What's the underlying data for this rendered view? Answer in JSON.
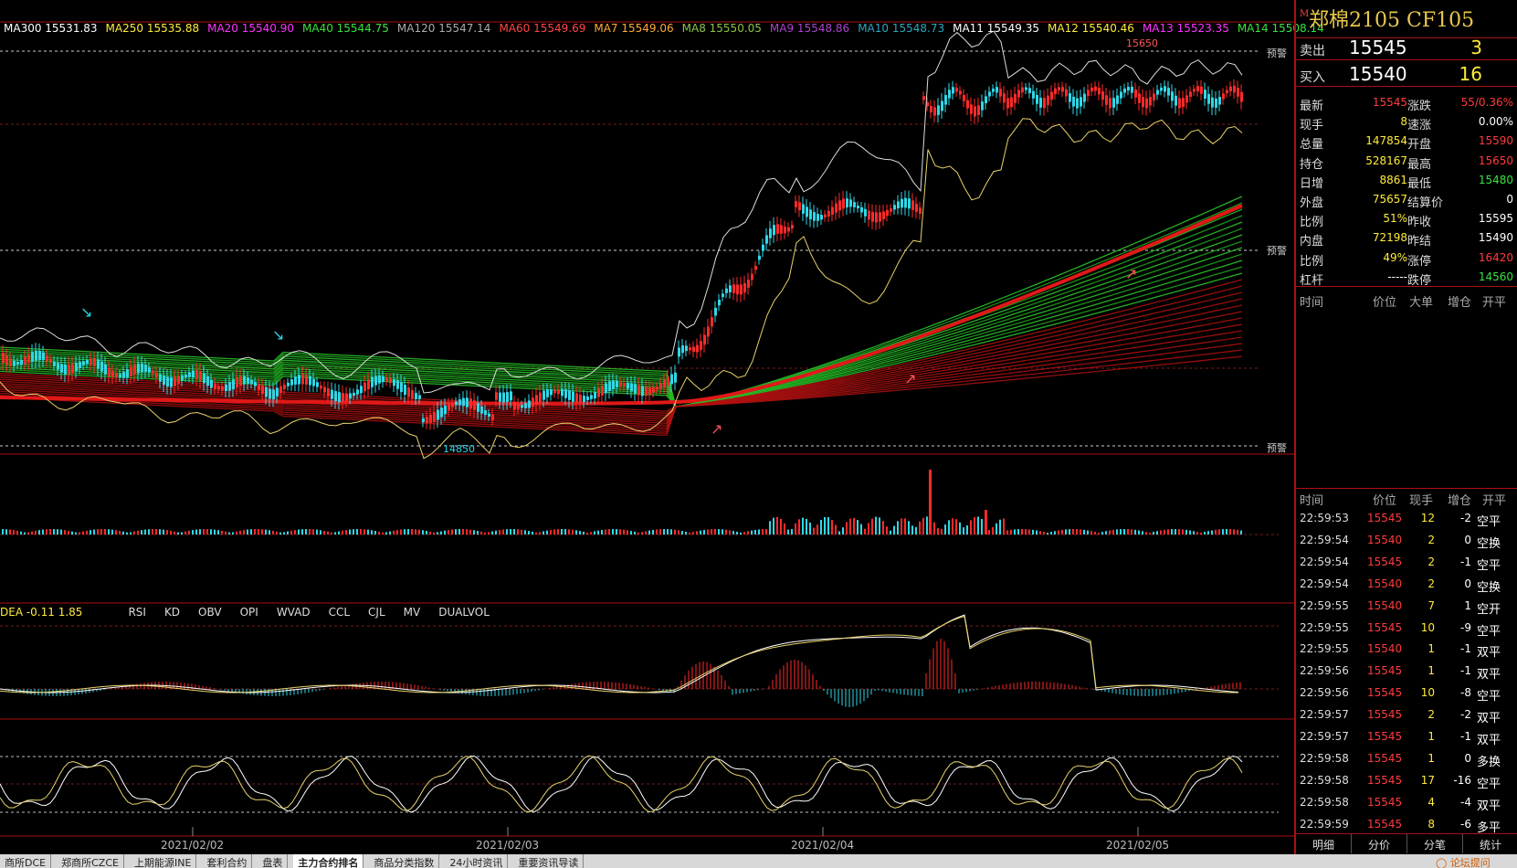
{
  "ma_bar": [
    {
      "label": "MA300 15531.83",
      "color": "#ffffff"
    },
    {
      "label": "MA250 15535.88",
      "color": "#ffeb3b"
    },
    {
      "label": "MA20 15540.90",
      "color": "#ff33ff"
    },
    {
      "label": "MA40 15544.75",
      "color": "#39e23f"
    },
    {
      "label": "MA120 15547.14",
      "color": "#aaaaaa"
    },
    {
      "label": "MA60 15549.69",
      "color": "#ff4444"
    },
    {
      "label": "MA7 15549.06",
      "color": "#ffaa33"
    },
    {
      "label": "MA8 15550.05",
      "color": "#8bc34a"
    },
    {
      "label": "MA9 15548.86",
      "color": "#aa44cc"
    },
    {
      "label": "MA10 15548.73",
      "color": "#2aa7c0"
    },
    {
      "label": "MA11 15549.35",
      "color": "#ffffff"
    },
    {
      "label": "MA12 15540.46",
      "color": "#ffeb3b"
    },
    {
      "label": "MA13 15523.35",
      "color": "#ff33ff"
    },
    {
      "label": "MA14 15508.14",
      "color": "#39e23f"
    }
  ],
  "price_labels": {
    "high": "15650",
    "low": "14850",
    "warn": "预警"
  },
  "indicator_bar": {
    "values": "DEA -0.11   1.85",
    "tabs": [
      "RSI",
      "KD",
      "OBV",
      "OPI",
      "WVAD",
      "CCL",
      "CJL",
      "MV",
      "DUALVOL"
    ]
  },
  "dates": [
    "2021/02/02",
    "2021/02/03",
    "2021/02/04",
    "2021/02/05"
  ],
  "contract": {
    "title": "郑棉2105  CF105",
    "market_badge": "M"
  },
  "quote": {
    "sell_label": "卖出",
    "sell_price": "15545",
    "sell_vol": "3",
    "buy_label": "买入",
    "buy_price": "15540",
    "buy_vol": "16"
  },
  "stats": [
    {
      "l1": "最新",
      "v1": "15545",
      "c1": "red",
      "l2": "涨跌",
      "v2": "55/0.36%",
      "c2": "red"
    },
    {
      "l1": "现手",
      "v1": "8",
      "c1": "yellow",
      "l2": "速涨",
      "v2": "0.00%",
      "c2": "white"
    },
    {
      "l1": "总量",
      "v1": "147854",
      "c1": "yellow",
      "l2": "开盘",
      "v2": "15590",
      "c2": "red"
    },
    {
      "l1": "持仓",
      "v1": "528167",
      "c1": "yellow",
      "l2": "最高",
      "v2": "15650",
      "c2": "red"
    },
    {
      "l1": "日增",
      "v1": "8861",
      "c1": "yellow",
      "l2": "最低",
      "v2": "15480",
      "c2": "green"
    },
    {
      "l1": "外盘",
      "v1": "75657",
      "c1": "yellow",
      "l2": "结算价",
      "v2": "0",
      "c2": "white"
    },
    {
      "l1": "比例",
      "v1": "51%",
      "c1": "yellow",
      "l2": "昨收",
      "v2": "15595",
      "c2": "white"
    },
    {
      "l1": "内盘",
      "v1": "72198",
      "c1": "yellow",
      "l2": "昨结",
      "v2": "15490",
      "c2": "white"
    },
    {
      "l1": "比例",
      "v1": "49%",
      "c1": "yellow",
      "l2": "涨停",
      "v2": "16420",
      "c2": "red"
    },
    {
      "l1": "杠杆",
      "v1": "-----",
      "c1": "white",
      "l2": "跌停",
      "v2": "14560",
      "c2": "green"
    }
  ],
  "bigorder_header": [
    "时间",
    "价位",
    "大单",
    "增仓",
    "开平"
  ],
  "trade_header": [
    "时间",
    "价位",
    "现手",
    "增仓",
    "开平"
  ],
  "trades": [
    {
      "time": "22:59:53",
      "price": "15545",
      "vol": "12",
      "oi": "-2",
      "type": "空平",
      "pc": "red"
    },
    {
      "time": "22:59:54",
      "price": "15540",
      "vol": "2",
      "oi": "0",
      "type": "空换",
      "pc": "red"
    },
    {
      "time": "22:59:54",
      "price": "15545",
      "vol": "2",
      "oi": "-1",
      "type": "空平",
      "pc": "red"
    },
    {
      "time": "22:59:54",
      "price": "15540",
      "vol": "2",
      "oi": "0",
      "type": "空换",
      "pc": "red"
    },
    {
      "time": "22:59:55",
      "price": "15540",
      "vol": "7",
      "oi": "1",
      "type": "空开",
      "pc": "red"
    },
    {
      "time": "22:59:55",
      "price": "15545",
      "vol": "10",
      "oi": "-9",
      "type": "空平",
      "pc": "red"
    },
    {
      "time": "22:59:55",
      "price": "15540",
      "vol": "1",
      "oi": "-1",
      "type": "双平",
      "pc": "red"
    },
    {
      "time": "22:59:56",
      "price": "15545",
      "vol": "1",
      "oi": "-1",
      "type": "双平",
      "pc": "red"
    },
    {
      "time": "22:59:56",
      "price": "15545",
      "vol": "10",
      "oi": "-8",
      "type": "空平",
      "pc": "red"
    },
    {
      "time": "22:59:57",
      "price": "15545",
      "vol": "2",
      "oi": "-2",
      "type": "双平",
      "pc": "red"
    },
    {
      "time": "22:59:57",
      "price": "15545",
      "vol": "1",
      "oi": "-1",
      "type": "双平",
      "pc": "red"
    },
    {
      "time": "22:59:58",
      "price": "15545",
      "vol": "1",
      "oi": "0",
      "type": "多换",
      "pc": "red"
    },
    {
      "time": "22:59:58",
      "price": "15545",
      "vol": "17",
      "oi": "-16",
      "type": "空平",
      "pc": "red"
    },
    {
      "time": "22:59:58",
      "price": "15545",
      "vol": "4",
      "oi": "-4",
      "type": "双平",
      "pc": "red"
    },
    {
      "time": "22:59:59",
      "price": "15545",
      "vol": "8",
      "oi": "-6",
      "type": "多平",
      "pc": "red"
    }
  ],
  "right_tabs": [
    "明细",
    "分价",
    "分笔",
    "统计"
  ],
  "bottom_tabs": [
    {
      "label": "商所DCE",
      "active": false
    },
    {
      "label": "郑商所CZCE",
      "active": false
    },
    {
      "label": "上期能源INE",
      "active": false
    },
    {
      "label": "套利合约",
      "active": false
    },
    {
      "label": "盘表",
      "active": false
    },
    {
      "label": "主力合约排名",
      "active": true
    },
    {
      "label": "商品分类指数",
      "active": false
    },
    {
      "label": "24小时资讯",
      "active": false
    },
    {
      "label": "重要资讯导读",
      "active": false
    }
  ],
  "forum_link": "论坛提问"
}
